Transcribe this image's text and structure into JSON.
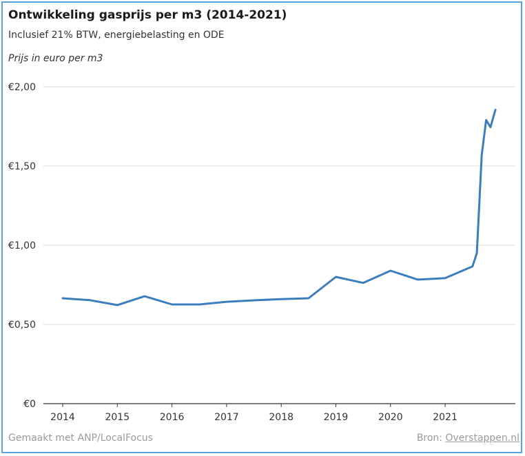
{
  "chart_data": {
    "type": "line",
    "title": "Ontwikkeling gasprijs per m3 (2014-2021)",
    "subtitle": "Inclusief 21% BTW, energiebelasting en ODE",
    "ylabel": "Prijs in euro per m3",
    "ylim": [
      0,
      2
    ],
    "yticks": [
      {
        "value": 0,
        "label": "€0"
      },
      {
        "value": 0.5,
        "label": "€0,50"
      },
      {
        "value": 1,
        "label": "€1,00"
      },
      {
        "value": 1.5,
        "label": "€1,50"
      },
      {
        "value": 2,
        "label": "€2,00"
      }
    ],
    "xlim": [
      2014,
      2021.95
    ],
    "xticks": [
      {
        "value": 2014,
        "label": "2014"
      },
      {
        "value": 2015,
        "label": "2015"
      },
      {
        "value": 2016,
        "label": "2016"
      },
      {
        "value": 2017,
        "label": "2017"
      },
      {
        "value": 2018,
        "label": "2018"
      },
      {
        "value": 2019,
        "label": "2019"
      },
      {
        "value": 2020,
        "label": "2020"
      },
      {
        "value": 2021,
        "label": "2021"
      }
    ],
    "grid": true,
    "series": [
      {
        "color": "#3b7dbd",
        "points": [
          {
            "x": 2014.0,
            "y": 0.665
          },
          {
            "x": 2014.5,
            "y": 0.653
          },
          {
            "x": 2015.0,
            "y": 0.622
          },
          {
            "x": 2015.5,
            "y": 0.678
          },
          {
            "x": 2016.0,
            "y": 0.626
          },
          {
            "x": 2016.5,
            "y": 0.626
          },
          {
            "x": 2017.0,
            "y": 0.643
          },
          {
            "x": 2017.5,
            "y": 0.652
          },
          {
            "x": 2018.0,
            "y": 0.66
          },
          {
            "x": 2018.5,
            "y": 0.665
          },
          {
            "x": 2019.0,
            "y": 0.8
          },
          {
            "x": 2019.5,
            "y": 0.762
          },
          {
            "x": 2020.0,
            "y": 0.839
          },
          {
            "x": 2020.5,
            "y": 0.783
          },
          {
            "x": 2021.0,
            "y": 0.792
          },
          {
            "x": 2021.5,
            "y": 0.866
          },
          {
            "x": 2021.58,
            "y": 0.95
          },
          {
            "x": 2021.67,
            "y": 1.57
          },
          {
            "x": 2021.75,
            "y": 1.79
          },
          {
            "x": 2021.83,
            "y": 1.745
          },
          {
            "x": 2021.92,
            "y": 1.855
          }
        ]
      }
    ]
  },
  "footer": {
    "made_with": "Gemaakt met ANP/LocalFocus",
    "source_prefix": "Bron: ",
    "source_link": "Overstappen.nl"
  }
}
